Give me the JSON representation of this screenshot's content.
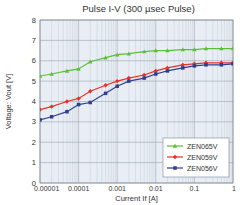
{
  "chart_data": {
    "type": "line",
    "title": "Pulse I-V (300 µsec Pulse)",
    "x_label": "Current If [A]",
    "y_label": "Voltage: Vout [V]",
    "log": "x",
    "grid": true,
    "legend": "bottom-right",
    "xlim": [
      1e-05,
      1
    ],
    "xticks": [
      1e-05,
      0.0001,
      0.001,
      0.01,
      0.1,
      1
    ],
    "ylim": [
      0,
      8
    ],
    "yticks": [
      0,
      1,
      2,
      3,
      4,
      5,
      6,
      7,
      8
    ],
    "x": [
      1e-05,
      2e-05,
      5e-05,
      0.0001,
      0.0002,
      0.0005,
      0.001,
      0.002,
      0.005,
      0.01,
      0.02,
      0.05,
      0.1,
      0.2,
      0.5,
      1
    ],
    "series": [
      {
        "name": "ZEN065V",
        "color": "#5cbf3a",
        "marker": "triangle",
        "values": [
          5.25,
          5.35,
          5.5,
          5.6,
          5.95,
          6.15,
          6.3,
          6.35,
          6.45,
          6.5,
          6.5,
          6.55,
          6.55,
          6.6,
          6.6,
          6.6
        ]
      },
      {
        "name": "ZEN059V",
        "color": "#e8312a",
        "marker": "diamond",
        "values": [
          3.6,
          3.75,
          4.0,
          4.15,
          4.5,
          4.8,
          5.0,
          5.15,
          5.3,
          5.5,
          5.65,
          5.8,
          5.85,
          5.9,
          5.9,
          5.9
        ]
      },
      {
        "name": "ZEN056V",
        "color": "#2f3f8f",
        "marker": "square",
        "values": [
          3.1,
          3.25,
          3.5,
          3.85,
          3.95,
          4.4,
          4.75,
          5.0,
          5.15,
          5.35,
          5.5,
          5.65,
          5.75,
          5.8,
          5.8,
          5.85
        ]
      }
    ]
  }
}
